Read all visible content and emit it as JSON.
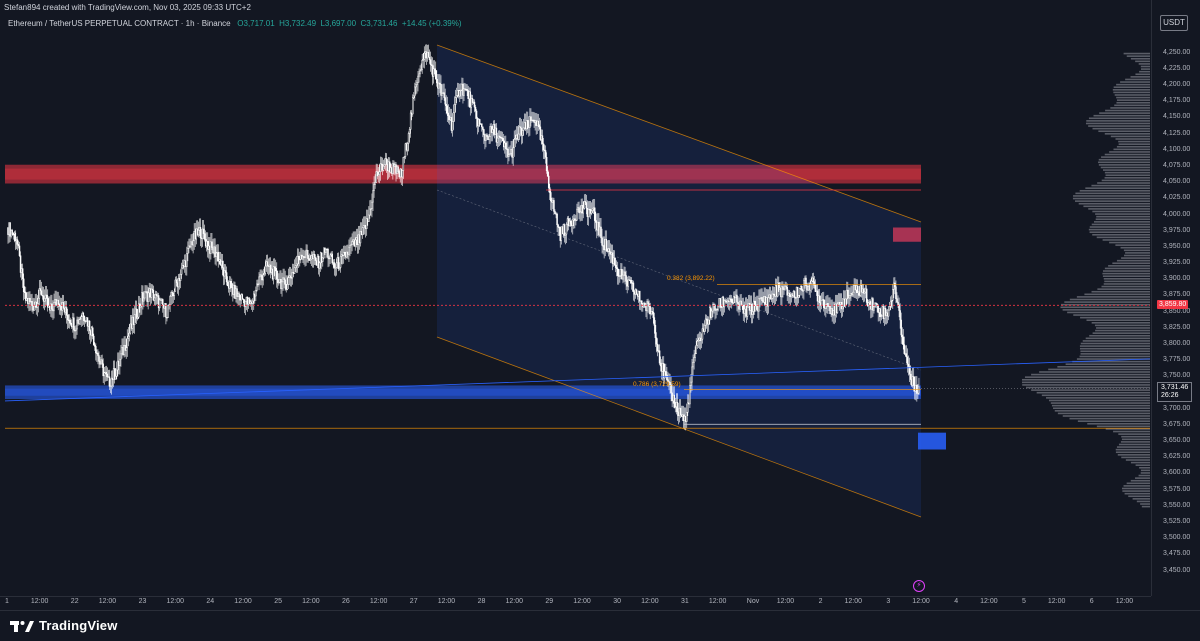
{
  "header": {
    "attribution": "Stefan894 created with TradingView.com, Nov 03, 2025 09:33 UTC+2",
    "symbol": "Ethereum / TetherUS PERPETUAL CONTRACT · 1h · Binance",
    "ohlc": {
      "open": "O3,717.01",
      "high": "H3,732.49",
      "low": "L3,697.00",
      "close": "C3,731.46",
      "change": "+14.45 (+0.39%)"
    }
  },
  "currency": "USDT",
  "price_axis": {
    "ticks": [
      "4,250.00",
      "4,225.00",
      "4,200.00",
      "4,175.00",
      "4,150.00",
      "4,125.00",
      "4,100.00",
      "4,075.00",
      "4,050.00",
      "4,025.00",
      "4,000.00",
      "3,975.00",
      "3,950.00",
      "3,925.00",
      "3,900.00",
      "3,875.00",
      "3,850.00",
      "3,825.00",
      "3,800.00",
      "3,775.00",
      "3,750.00",
      "3,725.00",
      "3,700.00",
      "3,675.00",
      "3,650.00",
      "3,625.00",
      "3,600.00",
      "3,575.00",
      "3,550.00",
      "3,525.00",
      "3,500.00",
      "3,475.00",
      "3,450.00"
    ],
    "marker_price": "3,859.80",
    "current_price": "3,731.46",
    "countdown": "26:26"
  },
  "time_axis": {
    "labels": [
      "1",
      "12:00",
      "22",
      "12:00",
      "23",
      "12:00",
      "24",
      "12:00",
      "25",
      "12:00",
      "26",
      "12:00",
      "27",
      "12:00",
      "28",
      "12:00",
      "29",
      "12:00",
      "30",
      "12:00",
      "31",
      "12:00",
      "Nov",
      "12:00",
      "2",
      "12:00",
      "3",
      "12:00",
      "4",
      "12:00",
      "5",
      "12:00",
      "6",
      "12:00"
    ]
  },
  "annotations": {
    "fib_382": "0.382 (3,892.22)",
    "fib_786": "0.786 (3,729.59)"
  },
  "colors": {
    "background": "#131722",
    "up": "#ffffff",
    "down": "#ffffff",
    "red_zone": "#f23645",
    "blue_zone": "#2962ff",
    "channel": "#ff9800",
    "marker": "#f23645"
  },
  "chart_data": {
    "type": "candlestick",
    "title": "",
    "symbol": "Ethereum / TetherUS PERPETUAL CONTRACT",
    "interval": "1h",
    "exchange": "Binance",
    "ylim": [
      3440,
      4275
    ],
    "last_close": 3731.46,
    "marker_price": 3859.8,
    "fib_levels": [
      {
        "ratio": 0.382,
        "price": 3892.22
      },
      {
        "ratio": 0.786,
        "price": 3729.59
      }
    ],
    "zones": [
      {
        "type": "supply",
        "from": 4048,
        "to": 4077
      },
      {
        "type": "supply",
        "from": 3958,
        "to": 3980
      },
      {
        "type": "demand",
        "from": 3715,
        "to": 3736
      },
      {
        "type": "demand",
        "from": 3637,
        "to": 3663
      }
    ],
    "price_path": [
      3980,
      3965,
      3870,
      3860,
      3880,
      3850,
      3870,
      3845,
      3830,
      3850,
      3820,
      3770,
      3740,
      3760,
      3800,
      3835,
      3870,
      3880,
      3865,
      3850,
      3890,
      3920,
      3960,
      3975,
      3950,
      3940,
      3900,
      3880,
      3870,
      3860,
      3900,
      3920,
      3905,
      3890,
      3910,
      3940,
      3935,
      3925,
      3945,
      3920,
      3930,
      3950,
      3960,
      3990,
      4060,
      4080,
      4070,
      4060,
      4140,
      4220,
      4250,
      4215,
      4180,
      4140,
      4200,
      4185,
      4150,
      4120,
      4130,
      4110,
      4090,
      4125,
      4135,
      4150,
      4100,
      4020,
      3970,
      3985,
      4005,
      4010,
      4000,
      3960,
      3940,
      3910,
      3895,
      3880,
      3860,
      3850,
      3770,
      3730,
      3700,
      3680,
      3780,
      3820,
      3850,
      3860,
      3870,
      3865,
      3850,
      3855,
      3865,
      3870,
      3885,
      3880,
      3875,
      3890,
      3895,
      3870,
      3860,
      3850,
      3870,
      3880,
      3885,
      3865,
      3855,
      3845,
      3890,
      3800,
      3740,
      3731
    ]
  }
}
